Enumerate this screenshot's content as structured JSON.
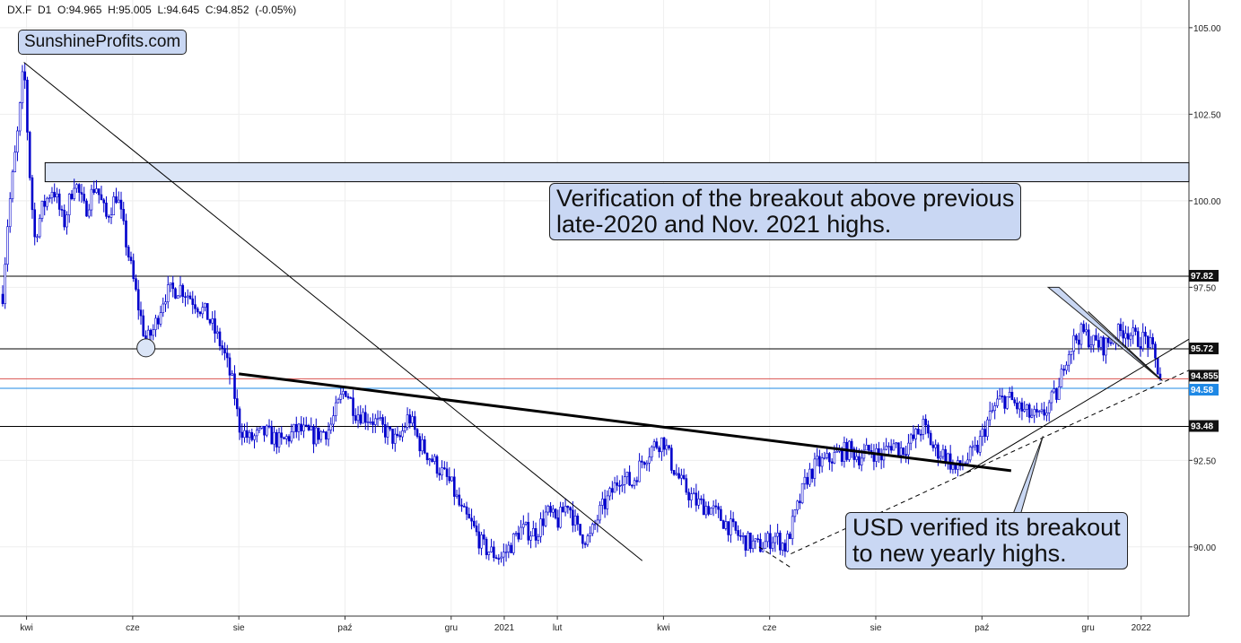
{
  "header": {
    "symbol": "DX.F",
    "timeframe": "D1",
    "ohlc": "O:94.965  H:95.005  L:94.645  C:94.852  (-0.05%)"
  },
  "brand": "SunshineProfits.com",
  "annotations": [
    {
      "text": "Verification of the breakout above previous\nlate-2020 and Nov. 2021 highs."
    },
    {
      "text": "USD verified its breakout\nto new yearly highs."
    }
  ],
  "colors": {
    "candles": "#0000cc",
    "zone_fill": "#dbe5f7",
    "annotation_fill": "#c9d7f3",
    "price_line_red": "#d9534f",
    "price_line_blue": "#1e88e5",
    "price_tag_dark": "#111111",
    "price_tag_blue": "#1e88e5"
  },
  "chart_data": {
    "type": "candlestick",
    "y_axis": {
      "ticks": [
        "105.00",
        "102.50",
        "100.00",
        "97.50",
        "92.50",
        "90.00"
      ],
      "ylim": [
        88.0,
        105.8
      ]
    },
    "x_axis": {
      "ticks": [
        {
          "label": "kwi",
          "x": 0
        },
        {
          "label": "cze",
          "x": 2
        },
        {
          "label": "sie",
          "x": 4
        },
        {
          "label": "paź",
          "x": 6
        },
        {
          "label": "gru",
          "x": 8
        },
        {
          "label": "2021",
          "x": 9
        },
        {
          "label": "lut",
          "x": 10
        },
        {
          "label": "kwi",
          "x": 12
        },
        {
          "label": "cze",
          "x": 14
        },
        {
          "label": "sie",
          "x": 16
        },
        {
          "label": "paź",
          "x": 18
        },
        {
          "label": "gru",
          "x": 20
        },
        {
          "label": "2022",
          "x": 21
        }
      ],
      "xlim": [
        -0.5,
        21.9
      ]
    },
    "price_levels": [
      {
        "value": 97.82,
        "label": "97.82",
        "style": "dark"
      },
      {
        "value": 95.72,
        "label": "95.72",
        "style": "dark"
      },
      {
        "value": 94.855,
        "label": "94.855",
        "style": "dark",
        "line": "red"
      },
      {
        "value": 94.58,
        "label": "94.58",
        "style": "blue",
        "line": "blue"
      },
      {
        "value": 93.48,
        "label": "93.48",
        "style": "dark",
        "line": "black"
      }
    ],
    "resistance_zone": {
      "from": 100.55,
      "to": 101.1
    },
    "close_path": [
      [
        -0.45,
        97.3
      ],
      [
        -0.35,
        99.5
      ],
      [
        -0.15,
        102.2
      ],
      [
        -0.05,
        104.0
      ],
      [
        0.05,
        101.0
      ],
      [
        0.15,
        98.9
      ],
      [
        0.3,
        99.8
      ],
      [
        0.5,
        100.4
      ],
      [
        0.7,
        99.3
      ],
      [
        0.9,
        100.6
      ],
      [
        1.1,
        99.7
      ],
      [
        1.3,
        100.5
      ],
      [
        1.5,
        99.5
      ],
      [
        1.7,
        100.2
      ],
      [
        1.9,
        98.6
      ],
      [
        2.1,
        97.0
      ],
      [
        2.25,
        95.9
      ],
      [
        2.4,
        96.3
      ],
      [
        2.6,
        97.3
      ],
      [
        2.9,
        97.5
      ],
      [
        3.1,
        97.2
      ],
      [
        3.4,
        96.7
      ],
      [
        3.7,
        95.7
      ],
      [
        3.9,
        94.6
      ],
      [
        4.0,
        93.5
      ],
      [
        4.2,
        93.1
      ],
      [
        4.5,
        93.3
      ],
      [
        4.8,
        93.0
      ],
      [
        5.1,
        93.4
      ],
      [
        5.4,
        93.2
      ],
      [
        5.7,
        93.4
      ],
      [
        6.0,
        94.6
      ],
      [
        6.2,
        93.9
      ],
      [
        6.5,
        93.7
      ],
      [
        6.8,
        93.3
      ],
      [
        7.0,
        93.0
      ],
      [
        7.2,
        93.8
      ],
      [
        7.4,
        93.0
      ],
      [
        7.7,
        92.4
      ],
      [
        8.0,
        91.8
      ],
      [
        8.2,
        91.0
      ],
      [
        8.4,
        90.6
      ],
      [
        8.6,
        90.0
      ],
      [
        8.8,
        89.8
      ],
      [
        8.95,
        89.7
      ],
      [
        9.1,
        90.0
      ],
      [
        9.3,
        90.5
      ],
      [
        9.6,
        90.4
      ],
      [
        9.8,
        91.0
      ],
      [
        10.0,
        90.7
      ],
      [
        10.2,
        91.3
      ],
      [
        10.4,
        90.4
      ],
      [
        10.6,
        90.2
      ],
      [
        10.8,
        91.0
      ],
      [
        11.0,
        91.5
      ],
      [
        11.2,
        92.1
      ],
      [
        11.4,
        91.8
      ],
      [
        11.6,
        92.5
      ],
      [
        11.8,
        92.9
      ],
      [
        12.0,
        93.1
      ],
      [
        12.15,
        92.4
      ],
      [
        12.35,
        91.8
      ],
      [
        12.6,
        91.3
      ],
      [
        12.9,
        91.1
      ],
      [
        13.1,
        90.8
      ],
      [
        13.3,
        90.5
      ],
      [
        13.5,
        90.2
      ],
      [
        13.8,
        90.0
      ],
      [
        14.1,
        90.3
      ],
      [
        14.3,
        90.0
      ],
      [
        14.5,
        91.0
      ],
      [
        14.7,
        92.0
      ],
      [
        14.9,
        92.4
      ],
      [
        15.1,
        92.5
      ],
      [
        15.3,
        92.7
      ],
      [
        15.5,
        92.8
      ],
      [
        15.7,
        92.6
      ],
      [
        15.9,
        92.8
      ],
      [
        16.1,
        92.6
      ],
      [
        16.3,
        93.0
      ],
      [
        16.5,
        92.8
      ],
      [
        16.7,
        93.1
      ],
      [
        16.9,
        93.5
      ],
      [
        17.1,
        92.8
      ],
      [
        17.3,
        92.7
      ],
      [
        17.5,
        92.2
      ],
      [
        17.7,
        92.5
      ],
      [
        17.9,
        92.8
      ],
      [
        18.1,
        93.6
      ],
      [
        18.3,
        94.2
      ],
      [
        18.5,
        94.3
      ],
      [
        18.7,
        94.0
      ],
      [
        18.9,
        93.8
      ],
      [
        19.1,
        93.7
      ],
      [
        19.3,
        94.2
      ],
      [
        19.45,
        94.5
      ],
      [
        19.55,
        95.4
      ],
      [
        19.75,
        96.0
      ],
      [
        19.9,
        96.2
      ],
      [
        20.1,
        95.9
      ],
      [
        20.3,
        95.8
      ],
      [
        20.5,
        96.1
      ],
      [
        20.7,
        96.3
      ],
      [
        20.9,
        96.0
      ],
      [
        21.1,
        96.0
      ],
      [
        21.2,
        95.7
      ],
      [
        21.3,
        95.2
      ],
      [
        21.38,
        94.85
      ]
    ],
    "trendlines": [
      {
        "from": [
          -0.05,
          104.0
        ],
        "to": [
          11.6,
          89.6
        ],
        "width": 1.0,
        "dash": false
      },
      {
        "from": [
          4.0,
          95.0
        ],
        "to": [
          18.55,
          92.2
        ],
        "width": 3.0,
        "dash": false
      },
      {
        "from": [
          13.8,
          90.0
        ],
        "to": [
          14.4,
          89.4
        ],
        "width": 1.0,
        "dash": true
      },
      {
        "from": [
          14.4,
          89.8
        ],
        "to": [
          21.9,
          95.1
        ],
        "width": 1.0,
        "dash": true
      },
      {
        "from": [
          17.65,
          92.1
        ],
        "to": [
          21.9,
          96.0
        ],
        "width": 1.0,
        "dash": false
      },
      {
        "from": [
          20.0,
          96.8
        ],
        "to": [
          21.4,
          94.8
        ],
        "width": 1.0,
        "dash": false
      }
    ],
    "marker": {
      "x": 2.25,
      "y": 95.75
    },
    "arrows": [
      {
        "from": [
          19.35,
          97.5
        ],
        "to": [
          21.35,
          94.85
        ]
      },
      {
        "from": [
          18.45,
          90.0
        ],
        "to": [
          19.15,
          93.2
        ]
      }
    ]
  }
}
